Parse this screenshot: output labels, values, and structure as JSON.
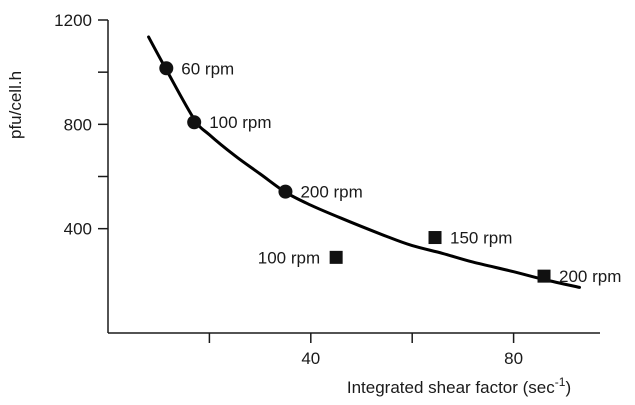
{
  "chart_data": {
    "type": "scatter",
    "title": "",
    "xlabel": "Integrated shear factor (sec",
    "xlabel_sup": "-1",
    "xlabel_close": ")",
    "ylabel": "pfu/cell.h",
    "xlim": [
      0,
      100
    ],
    "ylim": [
      0,
      1200
    ],
    "x_ticks": [
      {
        "value": 20,
        "label": ""
      },
      {
        "value": 40,
        "label": "40"
      },
      {
        "value": 60,
        "label": ""
      },
      {
        "value": 80,
        "label": "80"
      }
    ],
    "y_ticks": [
      {
        "value": 400,
        "label": "400"
      },
      {
        "value": 600,
        "label": ""
      },
      {
        "value": 800,
        "label": "800"
      },
      {
        "value": 1000,
        "label": ""
      },
      {
        "value": 1200,
        "label": "1200"
      }
    ],
    "grid": false,
    "legend": "none",
    "series": [
      {
        "marker": "circle",
        "points": [
          {
            "x": 11.5,
            "y": 1015,
            "label": "60 rpm"
          },
          {
            "x": 17,
            "y": 808,
            "label": "100 rpm"
          },
          {
            "x": 35,
            "y": 542,
            "label": "200 rpm"
          }
        ]
      },
      {
        "marker": "square",
        "points": [
          {
            "x": 45,
            "y": 290,
            "label": "100 rpm"
          },
          {
            "x": 64.5,
            "y": 366,
            "label": "150 rpm"
          },
          {
            "x": 86,
            "y": 218,
            "label": "200 rpm"
          }
        ]
      }
    ],
    "fit_curve": [
      [
        8,
        1135
      ],
      [
        11.5,
        1010
      ],
      [
        17,
        820
      ],
      [
        20,
        760
      ],
      [
        25,
        680
      ],
      [
        30,
        610
      ],
      [
        35,
        540
      ],
      [
        40,
        490
      ],
      [
        46,
        440
      ],
      [
        55,
        370
      ],
      [
        60,
        335
      ],
      [
        66,
        305
      ],
      [
        72,
        272
      ],
      [
        80,
        235
      ],
      [
        86,
        205
      ],
      [
        93,
        175
      ]
    ]
  }
}
